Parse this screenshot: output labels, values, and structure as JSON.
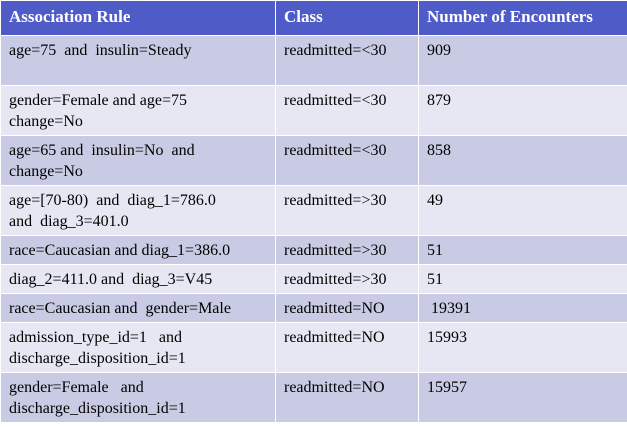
{
  "table": {
    "headers": [
      "Association Rule",
      "Class",
      "Number of Encounters"
    ],
    "rows": [
      {
        "rule": "age=75  and  insulin=Steady",
        "class": "readmitted=<30",
        "count": "909"
      },
      {
        "rule": "gender=Female and age=75\nchange=No",
        "class": "readmitted=<30",
        "count": "879"
      },
      {
        "rule": "age=65 and  insulin=No  and\nchange=No",
        "class": "readmitted=<30",
        "count": "858"
      },
      {
        "rule": "age=[70-80)  and  diag_1=786.0\nand  diag_3=401.0",
        "class": "readmitted=>30",
        "count": "49"
      },
      {
        "rule": "race=Caucasian and diag_1=386.0",
        "class": "readmitted=>30",
        "count": "51"
      },
      {
        "rule": "diag_2=411.0 and  diag_3=V45",
        "class": "readmitted=>30",
        "count": "51"
      },
      {
        "rule": "race=Caucasian and  gender=Male",
        "class": "readmitted=NO",
        "count": " 19391"
      },
      {
        "rule": "admission_type_id=1   and\ndischarge_disposition_id=1",
        "class": "readmitted=NO",
        "count": "15993"
      },
      {
        "rule": "gender=Female   and\ndischarge_disposition_id=1",
        "class": "readmitted=NO",
        "count": "15957"
      }
    ]
  },
  "colors": {
    "header_bg": "#4f5cc8",
    "row_odd_bg": "#c9cbe4",
    "row_even_bg": "#e6e7f3"
  }
}
